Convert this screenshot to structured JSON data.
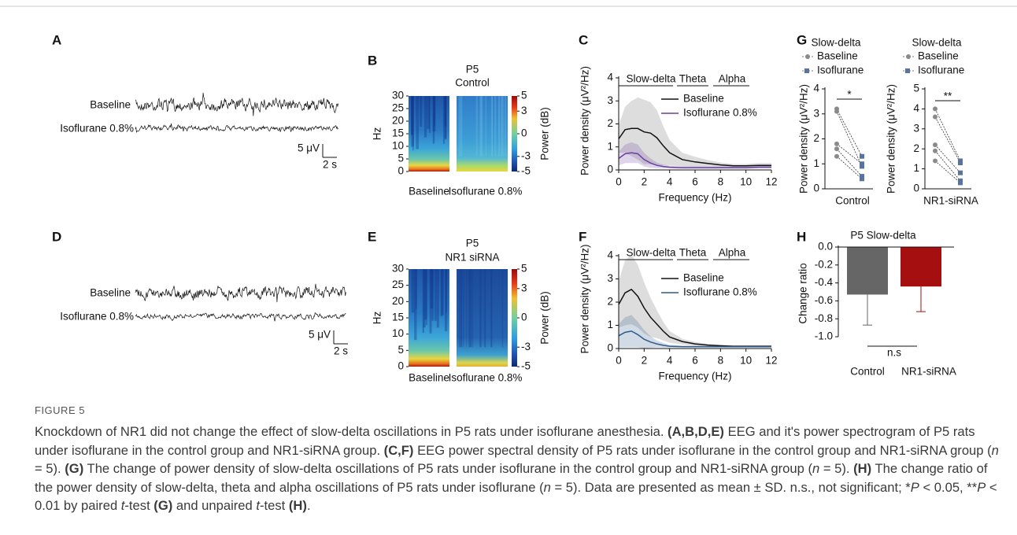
{
  "eeg": [
    {
      "label": "A",
      "baseline": "Baseline",
      "isoflurane": "Isoflurane 0.8%",
      "scale_v": "5 μV",
      "scale_t": "2 s"
    },
    {
      "label": "D",
      "baseline": "Baseline",
      "isoflurane": "Isoflurane 0.8%",
      "scale_v": "5 μV",
      "scale_t": "2 s"
    }
  ],
  "spectrograms": [
    {
      "label": "B",
      "title": [
        "P5",
        "Control"
      ],
      "ylabel": "Hz",
      "ylim": [
        0,
        30
      ],
      "yticks": [
        0,
        5,
        10,
        15,
        20,
        25,
        30
      ],
      "colorbar_label": "Power (dB)",
      "clim": [
        -5,
        5
      ],
      "cticks": [
        5,
        3,
        0,
        -3,
        -5
      ],
      "columns": [
        "Baseline",
        "Isoflurane 0.8%"
      ]
    },
    {
      "label": "E",
      "title": [
        "P5",
        "NR1 siRNA"
      ],
      "ylabel": "Hz",
      "ylim": [
        0,
        30
      ],
      "yticks": [
        0,
        5,
        10,
        15,
        20,
        25,
        30
      ],
      "colorbar_label": "Power (dB)",
      "clim": [
        -5,
        5
      ],
      "cticks": [
        5,
        3,
        0,
        -3,
        -5
      ],
      "columns": [
        "Baseline",
        "Isoflurane 0.8%"
      ]
    }
  ],
  "chart_data": [
    {
      "type": "line",
      "label": "C",
      "ylabel": "Power density (μV²/Hz)",
      "xlabel": "Frequency (Hz)",
      "band_labels": [
        "Slow-delta",
        "Theta",
        "Alpha"
      ],
      "x": [
        0,
        0.5,
        1,
        1.5,
        2,
        2.5,
        3,
        3.5,
        4,
        5,
        6,
        7,
        8,
        9,
        10,
        11,
        12
      ],
      "xlim": [
        0,
        12
      ],
      "xticks": [
        0,
        2,
        4,
        6,
        8,
        10,
        12
      ],
      "ylim": [
        0,
        4
      ],
      "yticks": [
        0,
        1,
        2,
        3,
        4
      ],
      "series": [
        {
          "name": "Baseline",
          "color": "#111111",
          "values": [
            1.35,
            1.75,
            1.8,
            1.8,
            1.65,
            1.6,
            1.4,
            1.05,
            0.75,
            0.45,
            0.35,
            0.28,
            0.22,
            0.18,
            0.18,
            0.2,
            0.2
          ],
          "errors": [
            0.6,
            1.0,
            1.2,
            1.35,
            1.4,
            1.35,
            1.2,
            0.85,
            0.55,
            0.3,
            0.22,
            0.15,
            0.1,
            0.08,
            0.08,
            0.1,
            0.1
          ]
        },
        {
          "name": "Isoflurane 0.8%",
          "color": "#6b3fa0",
          "values": [
            0.5,
            0.7,
            0.75,
            0.7,
            0.45,
            0.3,
            0.2,
            0.15,
            0.12,
            0.1,
            0.1,
            0.1,
            0.1,
            0.1,
            0.1,
            0.12,
            0.12
          ],
          "errors": [
            0.3,
            0.4,
            0.45,
            0.4,
            0.3,
            0.2,
            0.12,
            0.08,
            0.06,
            0.05,
            0.05,
            0.05,
            0.05,
            0.05,
            0.05,
            0.05,
            0.05
          ]
        }
      ]
    },
    {
      "type": "line",
      "label": "F",
      "ylabel": "Power density (μV²/Hz)",
      "xlabel": "Frequency (Hz)",
      "band_labels": [
        "Slow-delta",
        "Theta",
        "Alpha"
      ],
      "x": [
        0,
        0.5,
        1,
        1.5,
        2,
        2.5,
        3,
        3.5,
        4,
        5,
        6,
        7,
        8,
        9,
        10,
        11,
        12
      ],
      "xlim": [
        0,
        12
      ],
      "xticks": [
        0,
        2,
        4,
        6,
        8,
        10,
        12
      ],
      "ylim": [
        0,
        4
      ],
      "yticks": [
        0,
        1,
        2,
        3,
        4
      ],
      "series": [
        {
          "name": "Baseline",
          "color": "#111111",
          "values": [
            1.9,
            2.4,
            2.55,
            2.25,
            1.75,
            1.35,
            1.05,
            0.75,
            0.5,
            0.3,
            0.2,
            0.15,
            0.12,
            0.1,
            0.1,
            0.1,
            0.1
          ],
          "errors": [
            1.0,
            1.4,
            1.5,
            1.35,
            1.1,
            0.85,
            0.6,
            0.4,
            0.25,
            0.12,
            0.08,
            0.05,
            0.04,
            0.04,
            0.04,
            0.04,
            0.04
          ]
        },
        {
          "name": "Isoflurane 0.8%",
          "color": "#2e5a8c",
          "values": [
            0.55,
            0.7,
            0.75,
            0.6,
            0.4,
            0.28,
            0.2,
            0.14,
            0.1,
            0.08,
            0.08,
            0.08,
            0.08,
            0.08,
            0.08,
            0.08,
            0.08
          ],
          "errors": [
            0.5,
            0.65,
            0.7,
            0.55,
            0.4,
            0.25,
            0.15,
            0.1,
            0.06,
            0.04,
            0.04,
            0.04,
            0.04,
            0.04,
            0.04,
            0.04,
            0.04
          ]
        }
      ]
    },
    {
      "type": "paired",
      "label": "G",
      "title": "Slow-delta",
      "ylabel": "Power density (μV²/Hz)",
      "xlabel": "Control",
      "ylim": [
        0,
        4
      ],
      "yticks": [
        0,
        1,
        2,
        3,
        4
      ],
      "significance": "*",
      "series": [
        {
          "name": "Baseline",
          "color": "#8a8a8a",
          "values": [
            3.2,
            3.1,
            1.8,
            1.6,
            1.3
          ]
        },
        {
          "name": "Isoflurane",
          "color": "#5a72a0",
          "values": [
            1.3,
            0.9,
            1.0,
            0.5,
            0.4
          ]
        }
      ]
    },
    {
      "type": "paired",
      "title": "Slow-delta",
      "ylabel": "Power density (μV²/Hz)",
      "xlabel": "NR1-siRNA",
      "ylim": [
        0,
        5
      ],
      "yticks": [
        0,
        1,
        2,
        3,
        4,
        5
      ],
      "significance": "**",
      "series": [
        {
          "name": "Baseline",
          "color": "#8a8a8a",
          "values": [
            4.0,
            3.6,
            2.2,
            1.9,
            1.4
          ]
        },
        {
          "name": "Isoflurane",
          "color": "#5a72a0",
          "values": [
            1.4,
            1.3,
            0.8,
            0.4,
            0.3
          ]
        }
      ]
    },
    {
      "type": "bar",
      "label": "H",
      "title": "P5 Slow-delta",
      "ylabel": "Change ratio",
      "categories": [
        "Control",
        "NR1-siRNA"
      ],
      "values": [
        -0.53,
        -0.44
      ],
      "errors": [
        0.34,
        0.28
      ],
      "colors": [
        "#666666",
        "#a50f0f"
      ],
      "annotation": "n.s",
      "ylim": [
        -1,
        0
      ],
      "yticks": [
        {
          "value": 0,
          "label": "0.0"
        },
        -0.2,
        -0.4,
        -0.6,
        -0.8,
        {
          "value": -1,
          "label": "-1.0"
        }
      ]
    }
  ],
  "caption": {
    "label": "FIGURE 5",
    "runs": [
      "Knockdown of NR1 did not change the effect of slow-delta oscillations in P5 rats under isoflurane anesthesia. ",
      "(A,B,D,E)",
      " EEG and it's power spectrogram of P5 rats under isoflurane in the control group and NR1-siRNA group. ",
      "(C,F)",
      " EEG power spectral density of P5 rats under isoflurane in the control group and NR1-siRNA group (",
      "n",
      " = 5). ",
      "(G)",
      " The change of power density of slow-delta oscillations of P5 rats under isoflurane in the control group and NR1-siRNA group (",
      "n",
      " = 5). ",
      "(H)",
      " The change ratio of the power density of slow-delta, theta and alpha oscillations of P5 rats under isoflurane (",
      "n",
      " = 5). Data are presented as mean ± SD. n.s., not significant; *",
      "P",
      " < 0.05, **",
      "P",
      " < 0.01 by paired ",
      "t",
      "-test ",
      "(G)",
      " and unpaired ",
      "t",
      "-test ",
      "(H)",
      "."
    ]
  }
}
